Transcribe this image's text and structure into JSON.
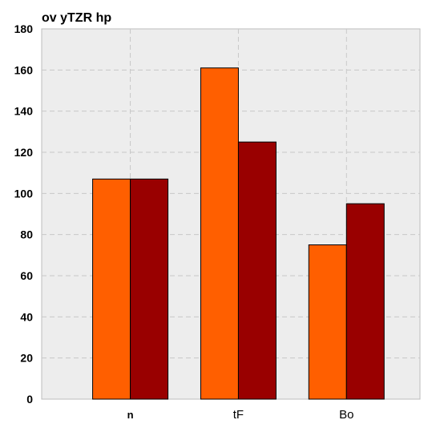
{
  "chart_data": {
    "type": "bar",
    "title": "ov yTZR hp",
    "categories": [
      "n",
      "tF",
      "Bo"
    ],
    "series": [
      {
        "values": [
          107,
          161,
          75
        ],
        "color": "#ff5f00"
      },
      {
        "values": [
          107,
          125,
          95
        ],
        "color": "#990000"
      }
    ],
    "ylim": [
      0,
      180
    ],
    "yticks": [
      0,
      20,
      40,
      60,
      80,
      100,
      120,
      140,
      160,
      180
    ],
    "grid": true,
    "background": "#ededed"
  }
}
